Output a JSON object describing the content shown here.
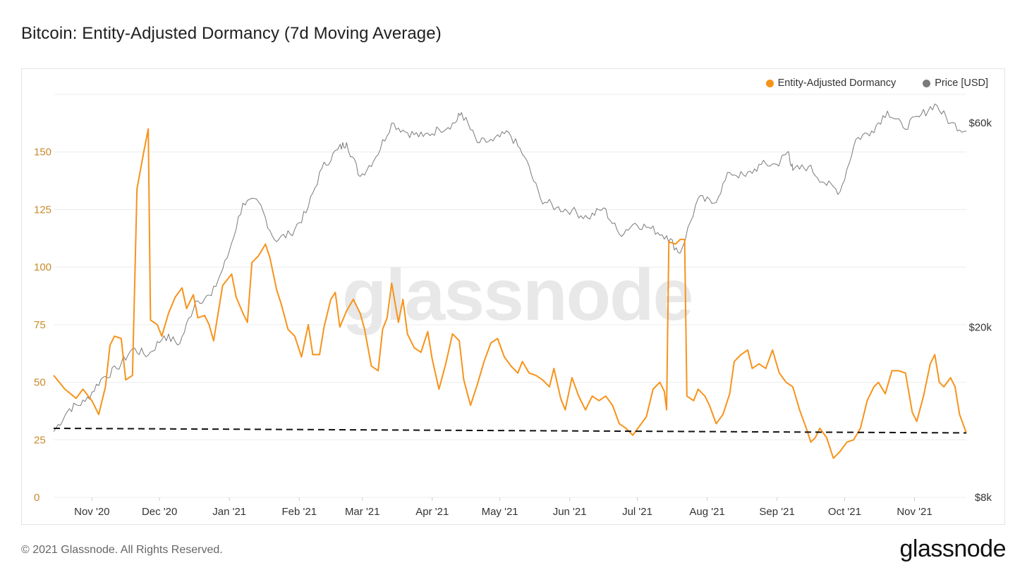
{
  "title": "Bitcoin: Entity-Adjusted Dormancy (7d Moving Average)",
  "footer": "© 2021 Glassnode. All Rights Reserved.",
  "brand": "glassnode",
  "watermark": "glassnode",
  "colors": {
    "dormancy": "#f7931a",
    "price": "#7a7a7a",
    "threshold": "#111111",
    "grid": "#ececec",
    "left_axis": "#c88a2a"
  },
  "chart_data": {
    "type": "line",
    "title": "Bitcoin: Entity-Adjusted Dormancy (7d Moving Average)",
    "legend": {
      "placement": "top-right",
      "entries": [
        "Entity-Adjusted Dormancy",
        "Price [USD]"
      ]
    },
    "grid": true,
    "x_axis": {
      "type": "date",
      "range": [
        "2020-10-15",
        "2021-11-24"
      ],
      "ticks": [
        "Nov '20",
        "Dec '20",
        "Jan '21",
        "Feb '21",
        "Mar '21",
        "Apr '21",
        "May '21",
        "Jun '21",
        "Jul '21",
        "Aug '21",
        "Sep '21",
        "Oct '21",
        "Nov '21"
      ]
    },
    "y_left": {
      "range": [
        0,
        175
      ],
      "ticks": [
        "0",
        "25",
        "50",
        "75",
        "100",
        "125",
        "150"
      ]
    },
    "y_right": {
      "scale": "log",
      "range": [
        8000,
        70000
      ],
      "ticks": [
        "$8k",
        "$20k",
        "$60k"
      ]
    },
    "threshold_line": {
      "style": "dashed",
      "from": [
        "2020-10-15",
        30
      ],
      "to": [
        "2021-11-24",
        28
      ]
    },
    "series": [
      {
        "name": "Entity-Adjusted Dormancy",
        "axis": "left",
        "points": [
          [
            "2020-10-15",
            53
          ],
          [
            "2020-10-20",
            47
          ],
          [
            "2020-10-25",
            43
          ],
          [
            "2020-10-28",
            47
          ],
          [
            "2020-11-01",
            42
          ],
          [
            "2020-11-04",
            36
          ],
          [
            "2020-11-07",
            48
          ],
          [
            "2020-11-09",
            66
          ],
          [
            "2020-11-11",
            70
          ],
          [
            "2020-11-14",
            69
          ],
          [
            "2020-11-16",
            51
          ],
          [
            "2020-11-19",
            53
          ],
          [
            "2020-11-21",
            134
          ],
          [
            "2020-11-24",
            150
          ],
          [
            "2020-11-26",
            160
          ],
          [
            "2020-11-27",
            77
          ],
          [
            "2020-11-30",
            75
          ],
          [
            "2020-12-02",
            70
          ],
          [
            "2020-12-05",
            80
          ],
          [
            "2020-12-08",
            87
          ],
          [
            "2020-12-11",
            91
          ],
          [
            "2020-12-13",
            82
          ],
          [
            "2020-12-16",
            88
          ],
          [
            "2020-12-18",
            78
          ],
          [
            "2020-12-21",
            79
          ],
          [
            "2020-12-23",
            75
          ],
          [
            "2020-12-25",
            68
          ],
          [
            "2020-12-27",
            80
          ],
          [
            "2020-12-29",
            92
          ],
          [
            "2021-01-02",
            97
          ],
          [
            "2021-01-04",
            87
          ],
          [
            "2021-01-07",
            80
          ],
          [
            "2021-01-09",
            76
          ],
          [
            "2021-01-11",
            102
          ],
          [
            "2021-01-14",
            105
          ],
          [
            "2021-01-17",
            110
          ],
          [
            "2021-01-19",
            104
          ],
          [
            "2021-01-22",
            90
          ],
          [
            "2021-01-24",
            84
          ],
          [
            "2021-01-27",
            73
          ],
          [
            "2021-01-30",
            70
          ],
          [
            "2021-02-02",
            61
          ],
          [
            "2021-02-05",
            75
          ],
          [
            "2021-02-07",
            62
          ],
          [
            "2021-02-10",
            62
          ],
          [
            "2021-02-12",
            74
          ],
          [
            "2021-02-15",
            86
          ],
          [
            "2021-02-17",
            89
          ],
          [
            "2021-02-19",
            74
          ],
          [
            "2021-02-22",
            81
          ],
          [
            "2021-02-25",
            86
          ],
          [
            "2021-02-28",
            80
          ],
          [
            "2021-03-02",
            73
          ],
          [
            "2021-03-05",
            57
          ],
          [
            "2021-03-08",
            55
          ],
          [
            "2021-03-10",
            73
          ],
          [
            "2021-03-12",
            78
          ],
          [
            "2021-03-14",
            93
          ],
          [
            "2021-03-17",
            76
          ],
          [
            "2021-03-19",
            86
          ],
          [
            "2021-03-21",
            71
          ],
          [
            "2021-03-24",
            65
          ],
          [
            "2021-03-27",
            63
          ],
          [
            "2021-03-30",
            72
          ],
          [
            "2021-04-01",
            60
          ],
          [
            "2021-04-04",
            47
          ],
          [
            "2021-04-07",
            58
          ],
          [
            "2021-04-10",
            71
          ],
          [
            "2021-04-13",
            68
          ],
          [
            "2021-04-15",
            51
          ],
          [
            "2021-04-18",
            40
          ],
          [
            "2021-04-21",
            49
          ],
          [
            "2021-04-24",
            59
          ],
          [
            "2021-04-27",
            67
          ],
          [
            "2021-04-30",
            69
          ],
          [
            "2021-05-03",
            61
          ],
          [
            "2021-05-06",
            57
          ],
          [
            "2021-05-09",
            54
          ],
          [
            "2021-05-11",
            59
          ],
          [
            "2021-05-14",
            54
          ],
          [
            "2021-05-17",
            53
          ],
          [
            "2021-05-20",
            51
          ],
          [
            "2021-05-23",
            48
          ],
          [
            "2021-05-25",
            56
          ],
          [
            "2021-05-28",
            43
          ],
          [
            "2021-05-30",
            38
          ],
          [
            "2021-06-02",
            52
          ],
          [
            "2021-06-05",
            44
          ],
          [
            "2021-06-08",
            38
          ],
          [
            "2021-06-11",
            44
          ],
          [
            "2021-06-14",
            42
          ],
          [
            "2021-06-17",
            44
          ],
          [
            "2021-06-20",
            40
          ],
          [
            "2021-06-23",
            32
          ],
          [
            "2021-06-26",
            30
          ],
          [
            "2021-06-29",
            27
          ],
          [
            "2021-07-02",
            31
          ],
          [
            "2021-07-05",
            35
          ],
          [
            "2021-07-08",
            47
          ],
          [
            "2021-07-11",
            50
          ],
          [
            "2021-07-13",
            46
          ],
          [
            "2021-07-14",
            38
          ],
          [
            "2021-07-15",
            111
          ],
          [
            "2021-07-18",
            110
          ],
          [
            "2021-07-20",
            112
          ],
          [
            "2021-07-22",
            112
          ],
          [
            "2021-07-23",
            44
          ],
          [
            "2021-07-26",
            42
          ],
          [
            "2021-07-28",
            47
          ],
          [
            "2021-07-31",
            44
          ],
          [
            "2021-08-02",
            40
          ],
          [
            "2021-08-05",
            32
          ],
          [
            "2021-08-08",
            36
          ],
          [
            "2021-08-11",
            45
          ],
          [
            "2021-08-13",
            59
          ],
          [
            "2021-08-16",
            62
          ],
          [
            "2021-08-19",
            64
          ],
          [
            "2021-08-21",
            56
          ],
          [
            "2021-08-24",
            58
          ],
          [
            "2021-08-27",
            56
          ],
          [
            "2021-08-30",
            64
          ],
          [
            "2021-09-02",
            54
          ],
          [
            "2021-09-05",
            50
          ],
          [
            "2021-09-08",
            48
          ],
          [
            "2021-09-11",
            38
          ],
          [
            "2021-09-14",
            30
          ],
          [
            "2021-09-16",
            24
          ],
          [
            "2021-09-18",
            26
          ],
          [
            "2021-09-20",
            30
          ],
          [
            "2021-09-23",
            26
          ],
          [
            "2021-09-26",
            17
          ],
          [
            "2021-09-29",
            20
          ],
          [
            "2021-10-02",
            24
          ],
          [
            "2021-10-05",
            25
          ],
          [
            "2021-10-08",
            30
          ],
          [
            "2021-10-11",
            42
          ],
          [
            "2021-10-14",
            48
          ],
          [
            "2021-10-16",
            50
          ],
          [
            "2021-10-19",
            45
          ],
          [
            "2021-10-22",
            55
          ],
          [
            "2021-10-25",
            55
          ],
          [
            "2021-10-28",
            54
          ],
          [
            "2021-10-31",
            37
          ],
          [
            "2021-11-02",
            33
          ],
          [
            "2021-11-05",
            44
          ],
          [
            "2021-11-08",
            58
          ],
          [
            "2021-11-10",
            62
          ],
          [
            "2021-11-12",
            50
          ],
          [
            "2021-11-14",
            48
          ],
          [
            "2021-11-17",
            52
          ],
          [
            "2021-11-19",
            48
          ],
          [
            "2021-11-21",
            36
          ],
          [
            "2021-11-24",
            28
          ]
        ]
      },
      {
        "name": "Price [USD]",
        "axis": "right",
        "points": [
          [
            "2020-10-15",
            11400
          ],
          [
            "2020-10-22",
            12900
          ],
          [
            "2020-10-29",
            13400
          ],
          [
            "2020-11-05",
            15100
          ],
          [
            "2020-11-12",
            16000
          ],
          [
            "2020-11-19",
            17800
          ],
          [
            "2020-11-26",
            17200
          ],
          [
            "2020-12-03",
            19100
          ],
          [
            "2020-12-10",
            18300
          ],
          [
            "2020-12-17",
            23000
          ],
          [
            "2020-12-24",
            23700
          ],
          [
            "2020-12-31",
            29000
          ],
          [
            "2021-01-07",
            39000
          ],
          [
            "2021-01-14",
            39200
          ],
          [
            "2021-01-21",
            32000
          ],
          [
            "2021-01-28",
            33000
          ],
          [
            "2021-02-04",
            37000
          ],
          [
            "2021-02-11",
            47000
          ],
          [
            "2021-02-18",
            52000
          ],
          [
            "2021-02-22",
            54000
          ],
          [
            "2021-02-28",
            45000
          ],
          [
            "2021-03-07",
            50000
          ],
          [
            "2021-03-14",
            60000
          ],
          [
            "2021-03-21",
            57000
          ],
          [
            "2021-03-28",
            55800
          ],
          [
            "2021-04-04",
            58000
          ],
          [
            "2021-04-11",
            60000
          ],
          [
            "2021-04-14",
            63500
          ],
          [
            "2021-04-21",
            54000
          ],
          [
            "2021-04-28",
            54500
          ],
          [
            "2021-05-05",
            57000
          ],
          [
            "2021-05-12",
            50000
          ],
          [
            "2021-05-19",
            40000
          ],
          [
            "2021-05-26",
            38000
          ],
          [
            "2021-06-02",
            37500
          ],
          [
            "2021-06-09",
            36000
          ],
          [
            "2021-06-16",
            38000
          ],
          [
            "2021-06-23",
            33000
          ],
          [
            "2021-06-30",
            35000
          ],
          [
            "2021-07-07",
            34000
          ],
          [
            "2021-07-14",
            32700
          ],
          [
            "2021-07-20",
            29800
          ],
          [
            "2021-07-28",
            40000
          ],
          [
            "2021-08-04",
            39000
          ],
          [
            "2021-08-11",
            46000
          ],
          [
            "2021-08-18",
            45000
          ],
          [
            "2021-08-25",
            48000
          ],
          [
            "2021-09-01",
            48000
          ],
          [
            "2021-09-06",
            51500
          ],
          [
            "2021-09-08",
            46500
          ],
          [
            "2021-09-15",
            47500
          ],
          [
            "2021-09-22",
            43500
          ],
          [
            "2021-09-29",
            41500
          ],
          [
            "2021-10-06",
            55000
          ],
          [
            "2021-10-13",
            57500
          ],
          [
            "2021-10-20",
            64000
          ],
          [
            "2021-10-27",
            58500
          ],
          [
            "2021-11-03",
            62000
          ],
          [
            "2021-11-10",
            66500
          ],
          [
            "2021-11-17",
            60000
          ],
          [
            "2021-11-24",
            57500
          ]
        ]
      }
    ]
  }
}
